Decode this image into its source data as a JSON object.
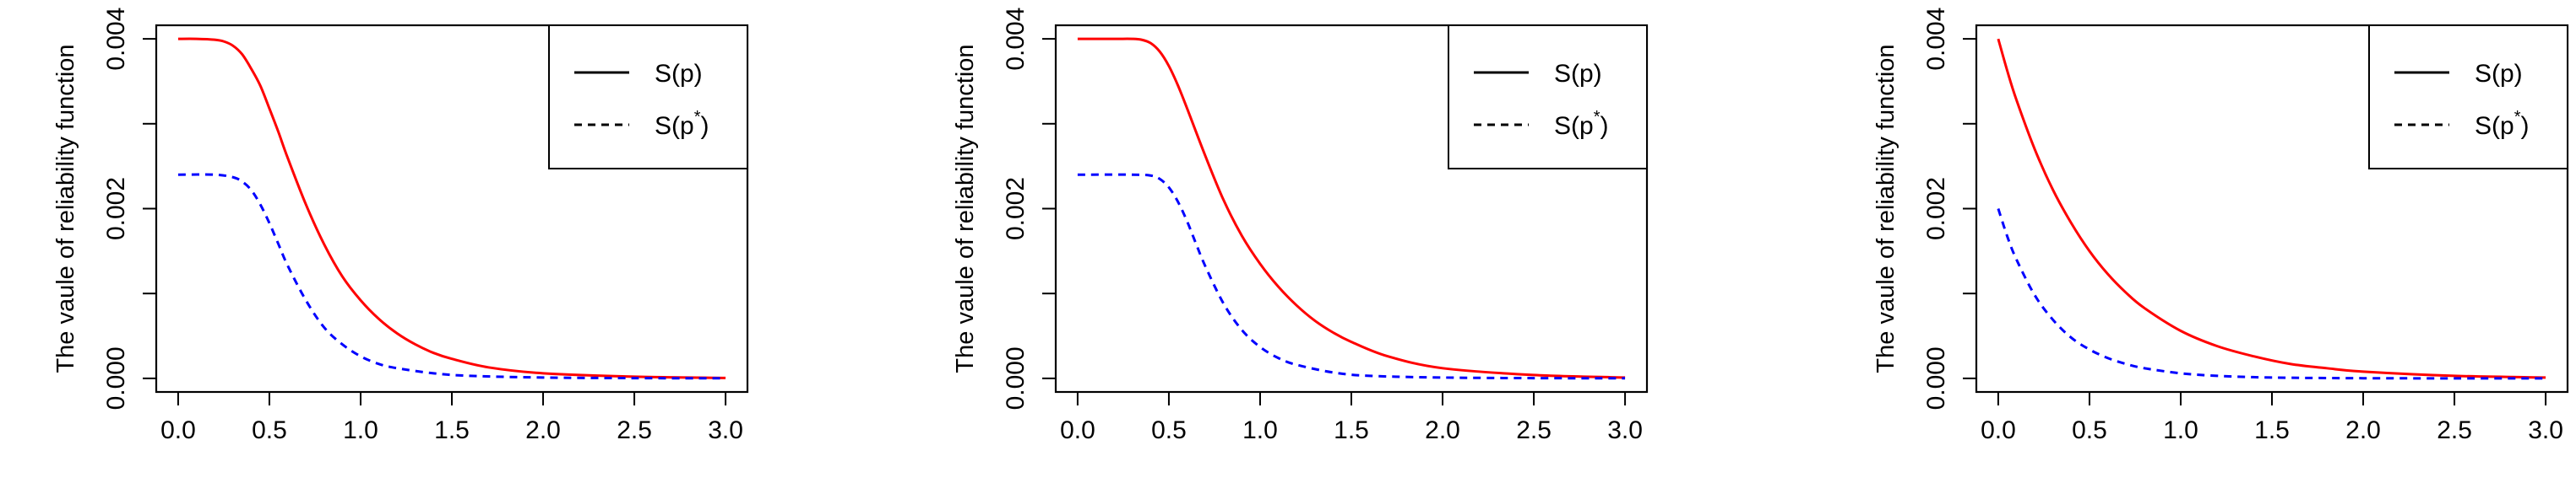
{
  "figure": {
    "panels_count": 3
  },
  "chart_data": [
    {
      "type": "line",
      "ylabel": "The vaule of reliability function",
      "xlabel": "",
      "title": "",
      "xlim": [
        0,
        3
      ],
      "ylim": [
        0,
        0.004
      ],
      "xticks": [
        "0.0",
        "0.5",
        "1.0",
        "1.5",
        "2.0",
        "2.5",
        "3.0"
      ],
      "yticks": [
        "0.000",
        "0.002",
        "0.004"
      ],
      "legend": {
        "position": "top-right",
        "entries": [
          {
            "label": "S(p)",
            "linestyle": "solid"
          },
          {
            "label": "S(p*)",
            "linestyle": "dashed"
          }
        ]
      },
      "series": [
        {
          "name": "S(p)",
          "color": "#ff0000",
          "linestyle": "solid",
          "x": [
            0,
            0.1,
            0.2,
            0.25,
            0.3,
            0.35,
            0.4,
            0.45,
            0.5,
            0.55,
            0.6,
            0.7,
            0.8,
            0.9,
            1.0,
            1.1,
            1.2,
            1.3,
            1.4,
            1.5,
            1.7,
            2.0,
            2.5,
            3.0
          ],
          "y": [
            0.004,
            0.004,
            0.00399,
            0.00397,
            0.00392,
            0.00382,
            0.00365,
            0.00345,
            0.00318,
            0.0029,
            0.0026,
            0.00205,
            0.00158,
            0.0012,
            0.00092,
            0.0007,
            0.00053,
            0.0004,
            0.0003,
            0.00023,
            0.00013,
            6e-05,
            2e-05,
            5e-06
          ]
        },
        {
          "name": "S(p*)",
          "color": "#0000ff",
          "linestyle": "dashed",
          "x": [
            0,
            0.2,
            0.3,
            0.35,
            0.4,
            0.45,
            0.5,
            0.55,
            0.6,
            0.7,
            0.8,
            0.9,
            1.0,
            1.1,
            1.2,
            1.4,
            1.6,
            2.0,
            2.5,
            3.0
          ],
          "y": [
            0.0024,
            0.0024,
            0.00237,
            0.00232,
            0.00222,
            0.00205,
            0.00183,
            0.00158,
            0.00133,
            0.00092,
            0.0006,
            0.0004,
            0.00026,
            0.00017,
            0.00012,
            6e-05,
            3e-05,
            1e-05,
            3e-06,
            1e-06
          ]
        }
      ]
    },
    {
      "type": "line",
      "ylabel": "The vaule of reliability function",
      "xlabel": "",
      "title": "",
      "xlim": [
        0,
        3
      ],
      "ylim": [
        0,
        0.004
      ],
      "xticks": [
        "0.0",
        "0.5",
        "1.0",
        "1.5",
        "2.0",
        "2.5",
        "3.0"
      ],
      "yticks": [
        "0.000",
        "0.002",
        "0.004"
      ],
      "legend": {
        "position": "top-right",
        "entries": [
          {
            "label": "S(p)",
            "linestyle": "solid"
          },
          {
            "label": "S(p*)",
            "linestyle": "dashed"
          }
        ]
      },
      "series": [
        {
          "name": "S(p)",
          "color": "#ff0000",
          "linestyle": "solid",
          "x": [
            0,
            0.2,
            0.3,
            0.35,
            0.4,
            0.45,
            0.5,
            0.55,
            0.6,
            0.7,
            0.8,
            0.9,
            1.0,
            1.1,
            1.2,
            1.3,
            1.4,
            1.5,
            1.7,
            2.0,
            2.5,
            3.0
          ],
          "y": [
            0.004,
            0.004,
            0.004,
            0.00399,
            0.00395,
            0.00385,
            0.00368,
            0.00345,
            0.00318,
            0.00262,
            0.0021,
            0.00168,
            0.00135,
            0.00108,
            0.00086,
            0.00068,
            0.00054,
            0.00043,
            0.00026,
            0.00012,
            4e-05,
            1e-05
          ]
        },
        {
          "name": "S(p*)",
          "color": "#0000ff",
          "linestyle": "dashed",
          "x": [
            0,
            0.3,
            0.4,
            0.45,
            0.5,
            0.55,
            0.6,
            0.65,
            0.7,
            0.8,
            0.9,
            1.0,
            1.1,
            1.2,
            1.4,
            1.6,
            2.0,
            2.5,
            3.0
          ],
          "y": [
            0.0024,
            0.0024,
            0.00239,
            0.00235,
            0.00225,
            0.00208,
            0.00185,
            0.00158,
            0.00132,
            0.00088,
            0.00057,
            0.00037,
            0.00024,
            0.00016,
            7e-05,
            3e-05,
            1e-05,
            3e-06,
            1e-06
          ]
        }
      ]
    },
    {
      "type": "line",
      "ylabel": "The vaule of reliability function",
      "xlabel": "",
      "title": "",
      "xlim": [
        0,
        3
      ],
      "ylim": [
        0,
        0.004
      ],
      "xticks": [
        "0.0",
        "0.5",
        "1.0",
        "1.5",
        "2.0",
        "2.5",
        "3.0"
      ],
      "yticks": [
        "0.000",
        "0.002",
        "0.004"
      ],
      "legend": {
        "position": "top-right",
        "entries": [
          {
            "label": "S(p)",
            "linestyle": "solid"
          },
          {
            "label": "S(p*)",
            "linestyle": "dashed"
          }
        ]
      },
      "series": [
        {
          "name": "S(p)",
          "color": "#ff0000",
          "linestyle": "solid",
          "x": [
            0,
            0.05,
            0.1,
            0.2,
            0.3,
            0.4,
            0.5,
            0.6,
            0.7,
            0.8,
            1.0,
            1.2,
            1.4,
            1.6,
            1.8,
            2.0,
            2.5,
            3.0
          ],
          "y": [
            0.004,
            0.00362,
            0.00328,
            0.0027,
            0.00222,
            0.00183,
            0.0015,
            0.00123,
            0.00101,
            0.00083,
            0.00056,
            0.00038,
            0.00026,
            0.00017,
            0.00012,
            8e-05,
            3e-05,
            1e-05
          ]
        },
        {
          "name": "S(p*)",
          "color": "#0000ff",
          "linestyle": "dashed",
          "x": [
            0,
            0.05,
            0.1,
            0.2,
            0.3,
            0.4,
            0.5,
            0.6,
            0.7,
            0.8,
            1.0,
            1.2,
            1.5,
            2.0,
            2.5,
            3.0
          ],
          "y": [
            0.002,
            0.00167,
            0.0014,
            0.00098,
            0.00069,
            0.00048,
            0.00034,
            0.00024,
            0.00017,
            0.00012,
            6e-05,
            3e-05,
            1e-05,
            2e-06,
            5e-07,
            1e-07
          ]
        }
      ]
    }
  ]
}
